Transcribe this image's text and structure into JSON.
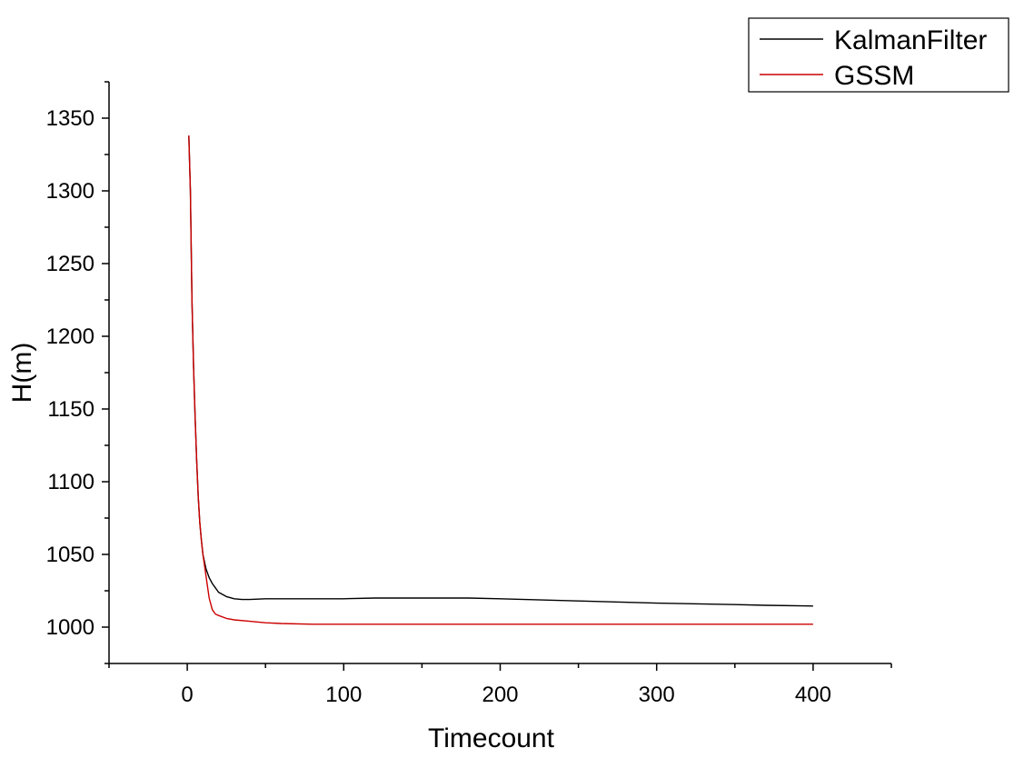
{
  "chart_data": {
    "type": "line",
    "title": "",
    "xlabel": "Timecount",
    "ylabel": "H(m)",
    "xlim": [
      -50,
      450
    ],
    "ylim": [
      975,
      1375
    ],
    "x_ticks": [
      0,
      100,
      200,
      300,
      400
    ],
    "x_tick_labels": [
      "0",
      "100",
      "200",
      "300",
      "400"
    ],
    "y_ticks": [
      1000,
      1050,
      1100,
      1150,
      1200,
      1250,
      1300,
      1350
    ],
    "y_tick_labels": [
      "1000",
      "1050",
      "1100",
      "1150",
      "1200",
      "1250",
      "1300",
      "1350"
    ],
    "grid": false,
    "legend_position": "top-right",
    "series": [
      {
        "name": "KalmanFilter",
        "color": "#000000",
        "x": [
          1,
          2,
          3,
          4,
          5,
          6,
          7,
          8,
          9,
          10,
          12,
          14,
          16,
          18,
          20,
          25,
          30,
          35,
          40,
          50,
          60,
          80,
          100,
          120,
          150,
          180,
          200,
          250,
          300,
          350,
          370,
          400
        ],
        "y": [
          1338,
          1300,
          1225,
          1180,
          1145,
          1115,
          1090,
          1072,
          1060,
          1050,
          1040,
          1034,
          1030,
          1027,
          1024,
          1021,
          1019.5,
          1019,
          1019,
          1019.5,
          1019.5,
          1019.5,
          1019.5,
          1020,
          1020,
          1020,
          1019.5,
          1018,
          1016.5,
          1015.5,
          1015,
          1014.5
        ]
      },
      {
        "name": "GSSM",
        "color": "#cc0000",
        "x": [
          1,
          2,
          3,
          4,
          5,
          6,
          7,
          8,
          9,
          10,
          12,
          14,
          16,
          18,
          20,
          25,
          30,
          40,
          50,
          60,
          80,
          100,
          150,
          200,
          250,
          300,
          350,
          400
        ],
        "y": [
          1338,
          1300,
          1225,
          1180,
          1145,
          1115,
          1090,
          1072,
          1060,
          1050,
          1035,
          1020,
          1012,
          1009,
          1008,
          1006,
          1005,
          1004,
          1003,
          1002.5,
          1002,
          1002,
          1002,
          1002,
          1002,
          1002,
          1002,
          1002
        ]
      }
    ]
  }
}
